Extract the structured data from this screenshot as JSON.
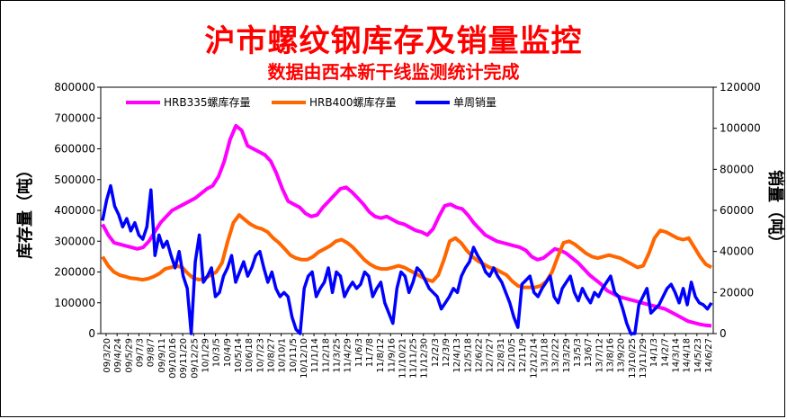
{
  "title": "沪市螺纹钢库存及销量监控",
  "subtitle": "数据由西本新干线监测统计完成",
  "colors": {
    "title": "#ff0000",
    "hrb335": "#ff00ff",
    "hrb400": "#ff6600",
    "sales": "#0000ff"
  },
  "chart_data": {
    "type": "line",
    "ylabel_left": "库存量（吨）",
    "ylabel_right": "销量（吨）",
    "ylim_left": [
      0,
      800000
    ],
    "ylim_right": [
      0,
      120000
    ],
    "yticks_left": [
      "0",
      "100000",
      "200000",
      "300000",
      "400000",
      "500000",
      "600000",
      "700000",
      "800000"
    ],
    "yticks_right": [
      "0",
      "20000",
      "40000",
      "60000",
      "80000",
      "100000",
      "120000"
    ],
    "legend_position": "top",
    "grid": false,
    "x_tick_labels": [
      "09/3/20",
      "09/4/24",
      "09/5/29",
      "09/7/3",
      "09/8/7",
      "09/9/11",
      "09/10/16",
      "09/11/20",
      "09/12/25",
      "10/1/29",
      "10/3/5",
      "10/4/9",
      "10/5/14",
      "10/6/18",
      "10/7/23",
      "10/8/27",
      "10/10/1",
      "10/11/5",
      "10/12/10",
      "11/1/14",
      "11/2/18",
      "11/3/25",
      "11/4/29",
      "11/6/3",
      "11/7/8",
      "11/8/12",
      "11/9/16",
      "11/10/21",
      "11/11/25",
      "11/12/30",
      "12/2/3",
      "12/3/9",
      "12/4/13",
      "12/5/18",
      "12/6/22",
      "12/7/27",
      "12/8/31",
      "12/10/5",
      "12/11/9",
      "12/12/14",
      "13/1/18",
      "13/2/22",
      "13/3/29",
      "13/5/3",
      "13/6/7",
      "13/7/12",
      "13/8/16",
      "13/9/20",
      "13/10/25",
      "13/11/29",
      "14/1/3",
      "14/2/7",
      "14/3/14",
      "14/4/18",
      "14/5/23",
      "14/6/27"
    ],
    "series": [
      {
        "name": "HRB335螺库存量",
        "axis": "left",
        "values": [
          355000,
          320000,
          295000,
          290000,
          285000,
          280000,
          275000,
          280000,
          300000,
          330000,
          360000,
          380000,
          400000,
          410000,
          420000,
          430000,
          440000,
          455000,
          470000,
          480000,
          510000,
          560000,
          630000,
          675000,
          660000,
          610000,
          600000,
          590000,
          580000,
          560000,
          520000,
          470000,
          430000,
          420000,
          410000,
          390000,
          380000,
          385000,
          410000,
          430000,
          450000,
          470000,
          475000,
          460000,
          440000,
          420000,
          395000,
          380000,
          375000,
          380000,
          370000,
          360000,
          355000,
          345000,
          335000,
          330000,
          320000,
          340000,
          380000,
          415000,
          420000,
          410000,
          405000,
          385000,
          360000,
          340000,
          320000,
          310000,
          300000,
          295000,
          290000,
          285000,
          280000,
          270000,
          250000,
          240000,
          245000,
          260000,
          275000,
          270000,
          260000,
          245000,
          230000,
          210000,
          190000,
          175000,
          160000,
          140000,
          130000,
          120000,
          115000,
          110000,
          105000,
          100000,
          95000,
          90000,
          85000,
          80000,
          70000,
          60000,
          50000,
          40000,
          35000,
          30000,
          27000,
          25000
        ]
      },
      {
        "name": "HRB400螺库存量",
        "axis": "left",
        "values": [
          250000,
          220000,
          200000,
          190000,
          185000,
          180000,
          178000,
          175000,
          178000,
          185000,
          195000,
          210000,
          215000,
          220000,
          215000,
          195000,
          180000,
          175000,
          180000,
          190000,
          200000,
          230000,
          300000,
          360000,
          385000,
          370000,
          355000,
          345000,
          340000,
          330000,
          310000,
          295000,
          275000,
          255000,
          245000,
          240000,
          240000,
          250000,
          265000,
          275000,
          285000,
          300000,
          305000,
          295000,
          280000,
          260000,
          240000,
          225000,
          215000,
          210000,
          210000,
          215000,
          220000,
          215000,
          205000,
          195000,
          185000,
          175000,
          170000,
          190000,
          240000,
          300000,
          310000,
          295000,
          270000,
          250000,
          235000,
          225000,
          215000,
          210000,
          200000,
          190000,
          170000,
          155000,
          150000,
          150000,
          150000,
          155000,
          170000,
          200000,
          250000,
          295000,
          300000,
          290000,
          275000,
          260000,
          250000,
          245000,
          250000,
          255000,
          250000,
          245000,
          235000,
          225000,
          215000,
          220000,
          260000,
          310000,
          335000,
          330000,
          320000,
          310000,
          305000,
          310000,
          280000,
          250000,
          225000,
          215000
        ]
      },
      {
        "name": "单周销量",
        "axis": "right",
        "values": [
          55000,
          65000,
          72000,
          62000,
          58000,
          52000,
          56000,
          50000,
          54000,
          48000,
          46000,
          52000,
          70000,
          38000,
          48000,
          42000,
          45000,
          38000,
          32000,
          40000,
          28000,
          22000,
          0,
          35000,
          48000,
          25000,
          28000,
          32000,
          18000,
          20000,
          28000,
          32000,
          38000,
          25000,
          30000,
          35000,
          28000,
          32000,
          38000,
          40000,
          32000,
          25000,
          30000,
          22000,
          18000,
          20000,
          18000,
          8000,
          2000,
          0,
          22000,
          28000,
          30000,
          18000,
          22000,
          25000,
          32000,
          20000,
          30000,
          28000,
          18000,
          22000,
          25000,
          22000,
          24000,
          30000,
          28000,
          18000,
          22000,
          25000,
          15000,
          10000,
          5000,
          22000,
          30000,
          28000,
          20000,
          25000,
          32000,
          30000,
          26000,
          22000,
          20000,
          18000,
          12000,
          15000,
          18000,
          22000,
          20000,
          28000,
          32000,
          35000,
          42000,
          38000,
          35000,
          30000,
          28000,
          32000,
          28000,
          25000,
          20000,
          15000,
          8000,
          3000,
          24000,
          26000,
          28000,
          20000,
          18000,
          22000,
          25000,
          28000,
          18000,
          15000,
          22000,
          25000,
          28000,
          20000,
          16000,
          22000,
          18000,
          15000,
          20000,
          18000,
          22000,
          25000,
          28000,
          20000,
          18000,
          12000,
          5000,
          0,
          0,
          14000,
          18000,
          22000,
          10000,
          12000,
          14000,
          18000,
          22000,
          24000,
          20000,
          15000,
          22000,
          14000,
          25000,
          18000,
          15000,
          14000,
          12000,
          15000
        ]
      }
    ]
  }
}
